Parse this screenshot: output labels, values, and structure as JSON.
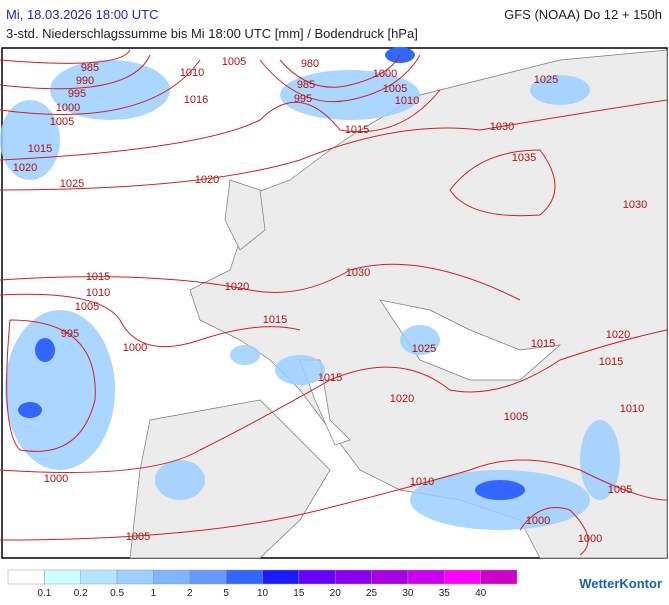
{
  "header": {
    "date": "Mi, 18.03.2026 18:00 UTC",
    "model": "GFS (NOAA) Do 12 + 150h",
    "subtitle": "3-std. Niederschlagssumme bis Mi 18:00 UTC [mm] / Bodendruck [hPa]"
  },
  "map": {
    "pressure_labels": [
      "985",
      "990",
      "995",
      "1000",
      "1005",
      "1010",
      "1005",
      "1016",
      "980",
      "985",
      "995",
      "1000",
      "1005",
      "1010",
      "1015",
      "1025",
      "1030",
      "1035",
      "1030",
      "1015",
      "1020",
      "1025",
      "1020",
      "1030",
      "1015",
      "1010",
      "1005",
      "995",
      "1020",
      "1015",
      "1000",
      "1025",
      "1015",
      "1020",
      "1015",
      "1015",
      "1020",
      "1005",
      "1010",
      "1000",
      "1010",
      "1005",
      "1000",
      "1000",
      "1005"
    ]
  },
  "legend": {
    "labels": [
      "0.1",
      "0.2",
      "0.5",
      "1",
      "2",
      "5",
      "10",
      "15",
      "20",
      "25",
      "30",
      "35",
      "40"
    ],
    "colors": [
      "#ffffff",
      "#ccffff",
      "#b4e4ff",
      "#9ccfff",
      "#7fb6ff",
      "#6699ff",
      "#3366ff",
      "#1a1aff",
      "#6600ff",
      "#8c00f0",
      "#a800e0",
      "#cc00f0",
      "#ff00ff",
      "#d000c8"
    ]
  },
  "logo": "WetterKontor"
}
